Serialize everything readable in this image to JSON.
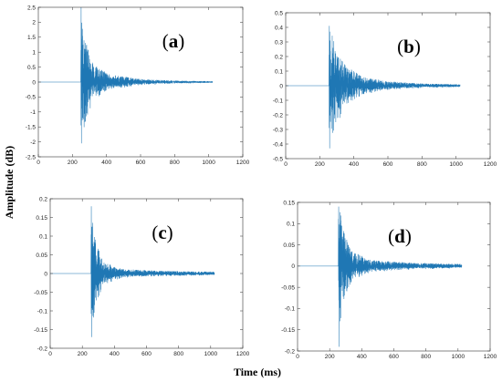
{
  "figure": {
    "ylabel": "Amplitude (dB)",
    "xlabel": "Time (ms)",
    "series_color": "#1f77b4",
    "axes_color": "#333333"
  },
  "chart_data": [
    {
      "type": "line",
      "panel": "(a)",
      "panel_letter": "a",
      "xlim": [
        0,
        1200
      ],
      "ylim": [
        -2.5,
        2.5
      ],
      "xticks": [
        0,
        200,
        400,
        600,
        800,
        1000,
        1200
      ],
      "yticks": [
        -2.5,
        -2,
        -1.5,
        -1,
        -0.5,
        0,
        0.5,
        1,
        1.5,
        2,
        2.5
      ],
      "grid": false,
      "signal": {
        "x_start": 0,
        "x_end": 1024,
        "onset": 250,
        "peak_pos": 2.5,
        "peak_neg": -2.05,
        "envelope": [
          [
            250,
            2.5
          ],
          [
            270,
            1.5
          ],
          [
            320,
            0.6
          ],
          [
            420,
            0.25
          ],
          [
            600,
            0.1
          ],
          [
            800,
            0.05
          ],
          [
            1024,
            0.03
          ]
        ]
      }
    },
    {
      "type": "line",
      "panel": "(b)",
      "panel_letter": "b",
      "xlim": [
        0,
        1200
      ],
      "ylim": [
        -0.5,
        0.5
      ],
      "xticks": [
        0,
        200,
        400,
        600,
        800,
        1000,
        1200
      ],
      "yticks": [
        -0.5,
        -0.4,
        -0.3,
        -0.2,
        -0.1,
        0,
        0.1,
        0.2,
        0.3,
        0.4,
        0.5
      ],
      "grid": false,
      "signal": {
        "x_start": 0,
        "x_end": 1024,
        "onset": 255,
        "peak_pos": 0.41,
        "peak_neg": -0.43,
        "envelope": [
          [
            255,
            0.42
          ],
          [
            290,
            0.3
          ],
          [
            350,
            0.14
          ],
          [
            450,
            0.06
          ],
          [
            600,
            0.03
          ],
          [
            800,
            0.015
          ],
          [
            1024,
            0.01
          ]
        ]
      }
    },
    {
      "type": "line",
      "panel": "(c)",
      "panel_letter": "c",
      "xlim": [
        0,
        1200
      ],
      "ylim": [
        -0.2,
        0.2
      ],
      "xticks": [
        0,
        200,
        400,
        600,
        800,
        1000,
        1200
      ],
      "yticks": [
        -0.2,
        -0.15,
        -0.1,
        -0.05,
        0,
        0.05,
        0.1,
        0.15,
        0.2
      ],
      "grid": false,
      "signal": {
        "x_start": 0,
        "x_end": 1024,
        "onset": 255,
        "peak_pos": 0.18,
        "peak_neg": -0.17,
        "envelope": [
          [
            255,
            0.18
          ],
          [
            275,
            0.1
          ],
          [
            330,
            0.03
          ],
          [
            450,
            0.012
          ],
          [
            700,
            0.007
          ],
          [
            1024,
            0.005
          ]
        ]
      }
    },
    {
      "type": "line",
      "panel": "(d)",
      "panel_letter": "d",
      "xlim": [
        0,
        1200
      ],
      "ylim": [
        -0.2,
        0.15
      ],
      "xticks": [
        0,
        200,
        400,
        600,
        800,
        1000,
        1200
      ],
      "yticks": [
        -0.2,
        -0.15,
        -0.1,
        -0.05,
        0,
        0.05,
        0.1,
        0.15
      ],
      "grid": false,
      "signal": {
        "x_start": 0,
        "x_end": 1024,
        "onset": 255,
        "peak_pos": 0.14,
        "peak_neg": -0.19,
        "envelope": [
          [
            255,
            0.17
          ],
          [
            280,
            0.09
          ],
          [
            340,
            0.035
          ],
          [
            450,
            0.015
          ],
          [
            700,
            0.008
          ],
          [
            1024,
            0.005
          ]
        ]
      }
    }
  ]
}
